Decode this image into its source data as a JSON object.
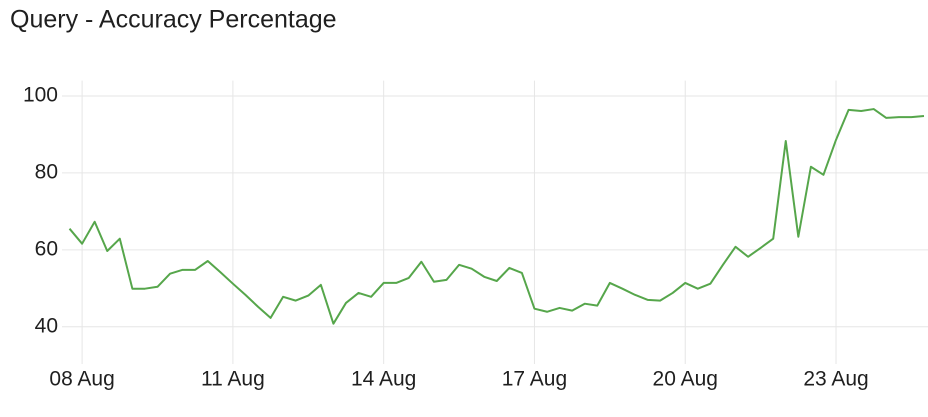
{
  "chart_data": {
    "type": "line",
    "title": "Query - Accuracy Percentage",
    "x": [
      7.75,
      8,
      8.25,
      8.5,
      8.75,
      9,
      9.25,
      9.5,
      9.75,
      10,
      10.25,
      10.5,
      10.75,
      11,
      11.25,
      11.5,
      11.75,
      12,
      12.25,
      12.5,
      12.75,
      13,
      13.25,
      13.5,
      13.75,
      14,
      14.25,
      14.5,
      14.75,
      15,
      15.25,
      15.5,
      15.75,
      16,
      16.25,
      16.5,
      16.75,
      17,
      17.25,
      17.5,
      17.75,
      18,
      18.25,
      18.5,
      18.75,
      19,
      19.25,
      19.5,
      19.75,
      20,
      20.25,
      20.5,
      20.75,
      21,
      21.25,
      21.5,
      21.75,
      22,
      22.25,
      22.5,
      22.75,
      23,
      23.25,
      23.5,
      23.75,
      24,
      24.25,
      24.5,
      24.75
    ],
    "series": [
      {
        "color": "#56a64b",
        "values": [
          65.5,
          61.6,
          67.3,
          59.7,
          62.9,
          49.9,
          49.9,
          50.4,
          53.8,
          54.8,
          54.8,
          57.1,
          54.2,
          51.2,
          48.3,
          45.2,
          42.3,
          47.8,
          46.8,
          48.1,
          50.9,
          40.8,
          46.2,
          48.8,
          47.8,
          51.4,
          51.4,
          52.7,
          56.9,
          51.7,
          52.2,
          56.1,
          55.1,
          53.0,
          51.9,
          55.3,
          54.0,
          44.7,
          43.9,
          44.9,
          44.2,
          46.0,
          45.5,
          51.4,
          49.9,
          48.3,
          47.0,
          46.8,
          48.8,
          51.4,
          49.9,
          51.2,
          56.1,
          60.8,
          58.2,
          60.5,
          62.9,
          88.3,
          63.4,
          81.6,
          79.5,
          88.6,
          96.4,
          96.1,
          96.6,
          94.3,
          94.5,
          94.5,
          94.8
        ]
      }
    ],
    "xlim": [
      7.6,
      24.83
    ],
    "ylim": [
      35,
      104
    ],
    "xticks": [
      {
        "value": 8,
        "label": "08 Aug"
      },
      {
        "value": 11,
        "label": "11 Aug"
      },
      {
        "value": 14,
        "label": "14 Aug"
      },
      {
        "value": 17,
        "label": "17 Aug"
      },
      {
        "value": 20,
        "label": "20 Aug"
      },
      {
        "value": 23,
        "label": "23 Aug"
      }
    ],
    "yticks": [
      40,
      60,
      80,
      100
    ],
    "grid": true
  }
}
